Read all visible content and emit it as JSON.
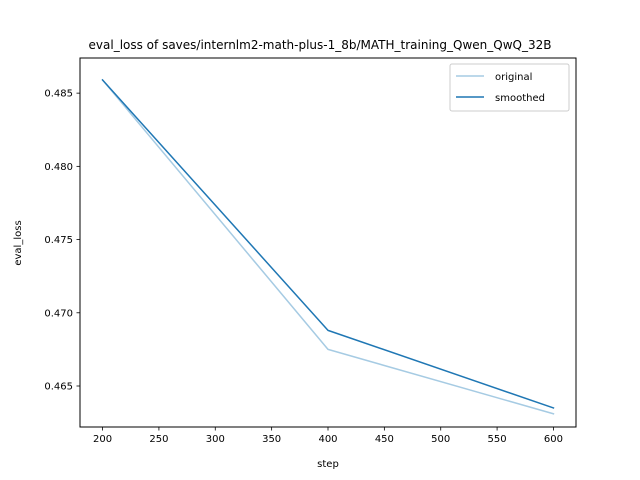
{
  "chart_data": {
    "type": "line",
    "title": "eval_loss of saves/internlm2-math-plus-1_8b/MATH_training_Qwen_QwQ_32B",
    "xlabel": "step",
    "ylabel": "eval_loss",
    "xlim": [
      180,
      620
    ],
    "ylim": [
      0.4622,
      0.4874
    ],
    "xticks": [
      200,
      250,
      300,
      350,
      400,
      450,
      500,
      550,
      600
    ],
    "yticks": [
      0.465,
      0.47,
      0.475,
      0.48,
      0.485
    ],
    "xtick_labels": [
      "200",
      "250",
      "300",
      "350",
      "400",
      "450",
      "500",
      "550",
      "600"
    ],
    "ytick_labels": [
      "0.465",
      "0.470",
      "0.475",
      "0.480",
      "0.485"
    ],
    "grid": false,
    "legend_position": "top-right",
    "x": [
      200,
      400,
      600
    ],
    "series": [
      {
        "name": "original",
        "color": "#a6cbe3",
        "values": [
          0.4859,
          0.4675,
          0.4631
        ]
      },
      {
        "name": "smoothed",
        "color": "#1f77b4",
        "values": [
          0.4859,
          0.4688,
          0.4635
        ]
      }
    ]
  }
}
